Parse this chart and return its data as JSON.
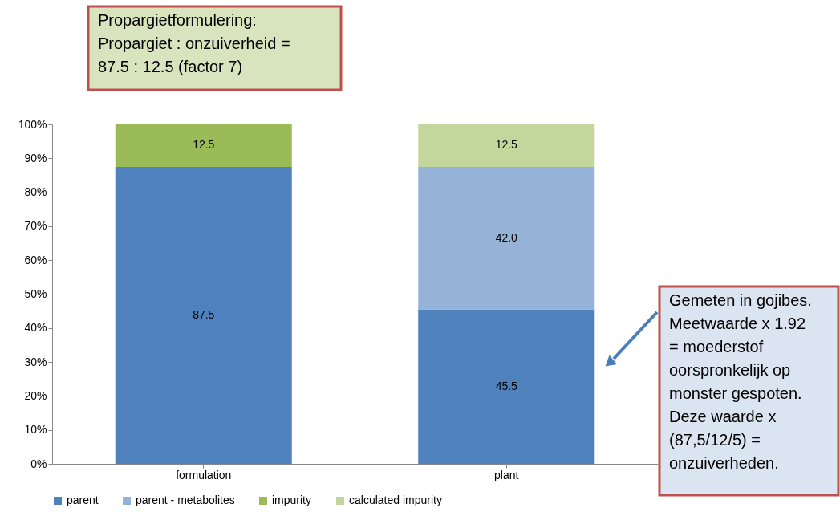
{
  "chart_data": {
    "type": "bar",
    "stacked": true,
    "categories": [
      "formulation",
      "plant"
    ],
    "series": [
      {
        "name": "parent",
        "color": "#4f81bd",
        "values": [
          87.5,
          45.5
        ],
        "value_labels": [
          "87.5",
          "45.5"
        ]
      },
      {
        "name": "parent - metabolites",
        "color": "#95b3d7",
        "values": [
          null,
          42.0
        ],
        "value_labels": [
          null,
          "42.0"
        ]
      },
      {
        "name": "impurity",
        "color": "#9bbb59",
        "values": [
          12.5,
          null
        ],
        "value_labels": [
          "12.5",
          null
        ]
      },
      {
        "name": "calculated impurity",
        "color": "#c3d69b",
        "values": [
          null,
          12.5
        ],
        "value_labels": [
          null,
          "12.5"
        ]
      }
    ],
    "ylim": [
      0,
      100
    ],
    "yticks": [
      {
        "value": 0,
        "label": "0%"
      },
      {
        "value": 10,
        "label": "10%"
      },
      {
        "value": 20,
        "label": "20%"
      },
      {
        "value": 30,
        "label": "30%"
      },
      {
        "value": 40,
        "label": "40%"
      },
      {
        "value": 50,
        "label": "50%"
      },
      {
        "value": 60,
        "label": "60%"
      },
      {
        "value": 70,
        "label": "70%"
      },
      {
        "value": 80,
        "label": "80%"
      },
      {
        "value": 90,
        "label": "90%"
      },
      {
        "value": 100,
        "label": "100%"
      }
    ],
    "legend": "bottom",
    "annotations": [
      "Propargietformulering:\nPropargiet : onzuiverheid =\n87.5 : 12.5 (factor 7)",
      "Gemeten in gojibes.\nMeetwaarde x 1.92\n= moederstof\noorspronkelijk op\nmonster gespoten.\nDeze waarde x\n(87,5/12/5) =\nonzuiverheden."
    ]
  }
}
